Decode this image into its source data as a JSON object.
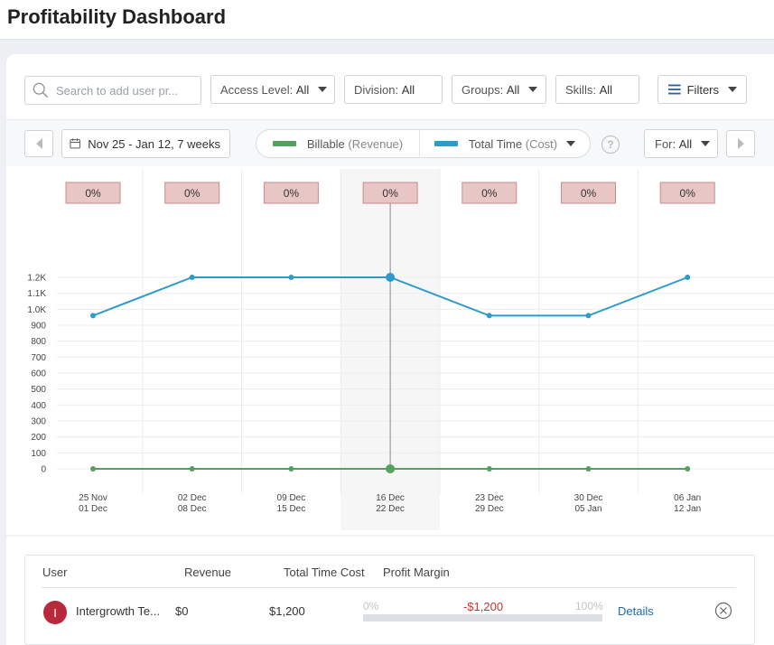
{
  "page": {
    "title": "Profitability Dashboard"
  },
  "filters": {
    "search_placeholder": "Search to add user pr...",
    "access_level": {
      "label": "Access Level:",
      "value": "All"
    },
    "division": {
      "label": "Division:",
      "value": "All"
    },
    "groups": {
      "label": "Groups:",
      "value": "All"
    },
    "skills": {
      "label": "Skills:",
      "value": "All"
    },
    "filters_label": "Filters"
  },
  "toolbar": {
    "date_range": "Nov 25 - Jan 12, 7 weeks",
    "legend": {
      "billable": {
        "label": "Billable",
        "sub": "(Revenue)",
        "color": "#54a05f"
      },
      "total_time": {
        "label": "Total Time",
        "sub": "(Cost)",
        "color": "#2f9bcb"
      }
    },
    "for": {
      "label": "For:",
      "value": "All"
    },
    "icons": [
      "calendar-icon",
      "help-icon",
      "chevron-left-icon",
      "chevron-right-icon",
      "hamburger-icon",
      "search-icon"
    ]
  },
  "chart_data": {
    "type": "line",
    "categories": [
      [
        "25 Nov",
        "01 Dec"
      ],
      [
        "02 Dec",
        "08 Dec"
      ],
      [
        "09 Dec",
        "15 Dec"
      ],
      [
        "16 Dec",
        "22 Dec"
      ],
      [
        "23 Dec",
        "29 Dec"
      ],
      [
        "30 Dec",
        "05 Jan"
      ],
      [
        "06 Jan",
        "12 Jan"
      ]
    ],
    "y_ticks": [
      "0",
      "100",
      "200",
      "300",
      "400",
      "500",
      "600",
      "700",
      "800",
      "900",
      "1.0K",
      "1.1K",
      "1.2K"
    ],
    "ylim": [
      0,
      1200
    ],
    "series": [
      {
        "name": "Total Time (Cost)",
        "color": "#2f9bcb",
        "values": [
          960,
          1200,
          1200,
          1200,
          960,
          960,
          1200
        ]
      },
      {
        "name": "Billable (Revenue)",
        "color": "#54a05f",
        "values": [
          0,
          0,
          0,
          0,
          0,
          0,
          0
        ]
      }
    ],
    "margin_labels": [
      "0%",
      "0%",
      "0%",
      "0%",
      "0%",
      "0%",
      "0%"
    ],
    "highlighted_index": 3,
    "grid": true
  },
  "table": {
    "headers": {
      "user": "User",
      "revenue": "Revenue",
      "cost": "Total Time Cost",
      "margin": "Profit Margin"
    },
    "rows": [
      {
        "avatar": "I",
        "user": "Intergrowth Te...",
        "revenue": "$0",
        "cost": "$1,200",
        "margin_low": "0%",
        "margin_value": "-$1,200",
        "margin_high": "100%",
        "details": "Details"
      }
    ]
  }
}
